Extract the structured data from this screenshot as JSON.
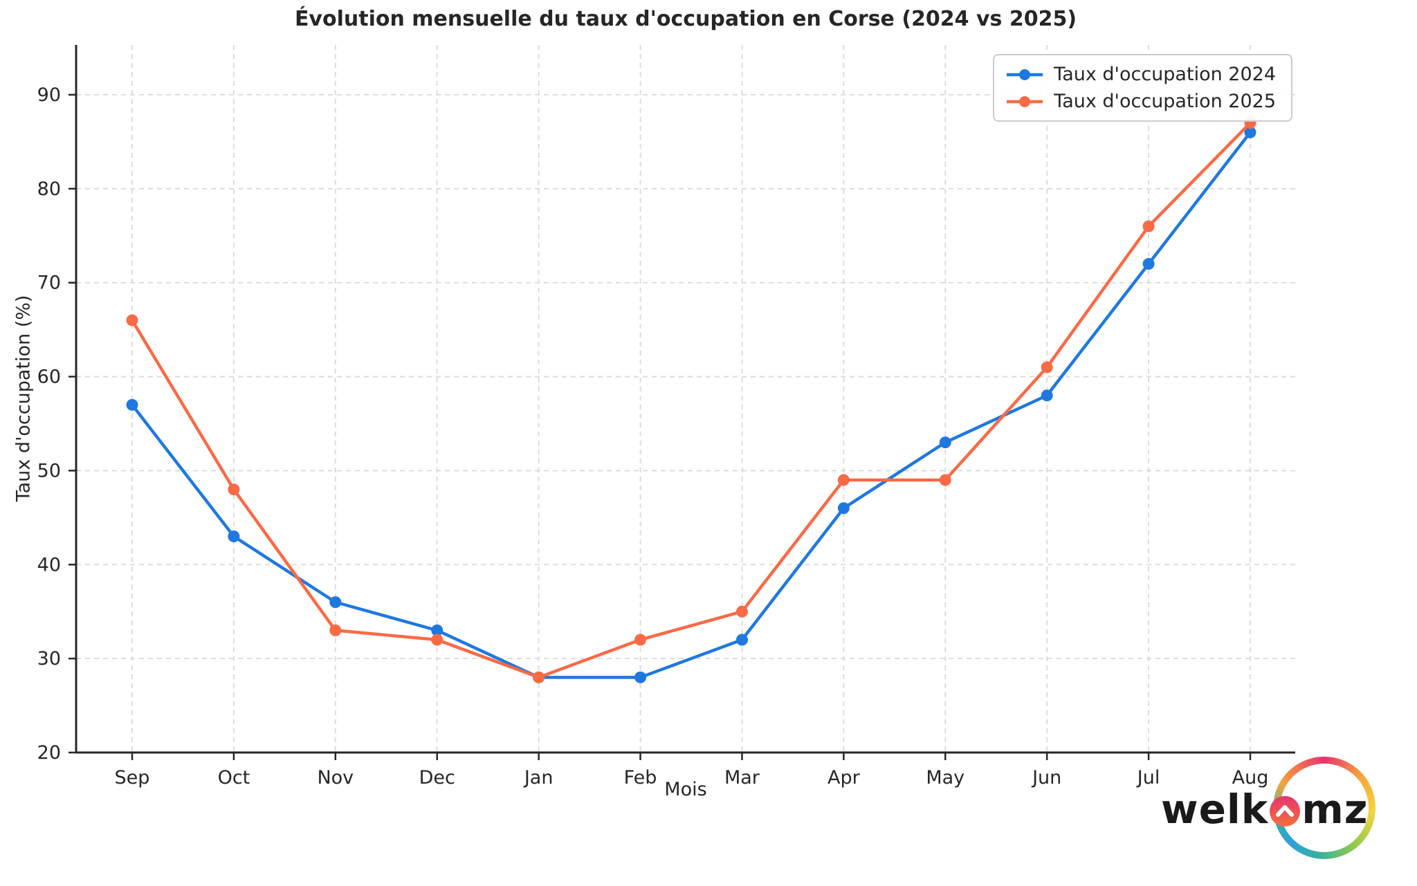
{
  "chart_data": {
    "type": "line",
    "title": "Évolution mensuelle du taux d'occupation en Corse (2024 vs 2025)",
    "xlabel": "Mois",
    "ylabel": "Taux d'occupation (%)",
    "categories": [
      "Sep",
      "Oct",
      "Nov",
      "Dec",
      "Jan",
      "Feb",
      "Mar",
      "Apr",
      "May",
      "Jun",
      "Jul",
      "Aug"
    ],
    "series": [
      {
        "name": "Taux d'occupation 2024",
        "color": "#1f78e0",
        "values": [
          57,
          43,
          36,
          33,
          28,
          28,
          32,
          46,
          53,
          58,
          72,
          86
        ]
      },
      {
        "name": "Taux d'occupation 2025",
        "color": "#f96a45",
        "values": [
          66,
          48,
          33,
          32,
          28,
          32,
          35,
          49,
          49,
          61,
          76,
          87
        ]
      }
    ],
    "yticks": [
      20,
      30,
      40,
      50,
      60,
      70,
      80,
      90
    ],
    "ylim": [
      20,
      95.3
    ],
    "grid": true,
    "legend_position": "top-right"
  },
  "colors": {
    "grid": "#d9d9d9",
    "axis": "#262626",
    "tick_label": "#262626"
  },
  "logo": {
    "text_left": "welk",
    "text_right": "mz"
  }
}
